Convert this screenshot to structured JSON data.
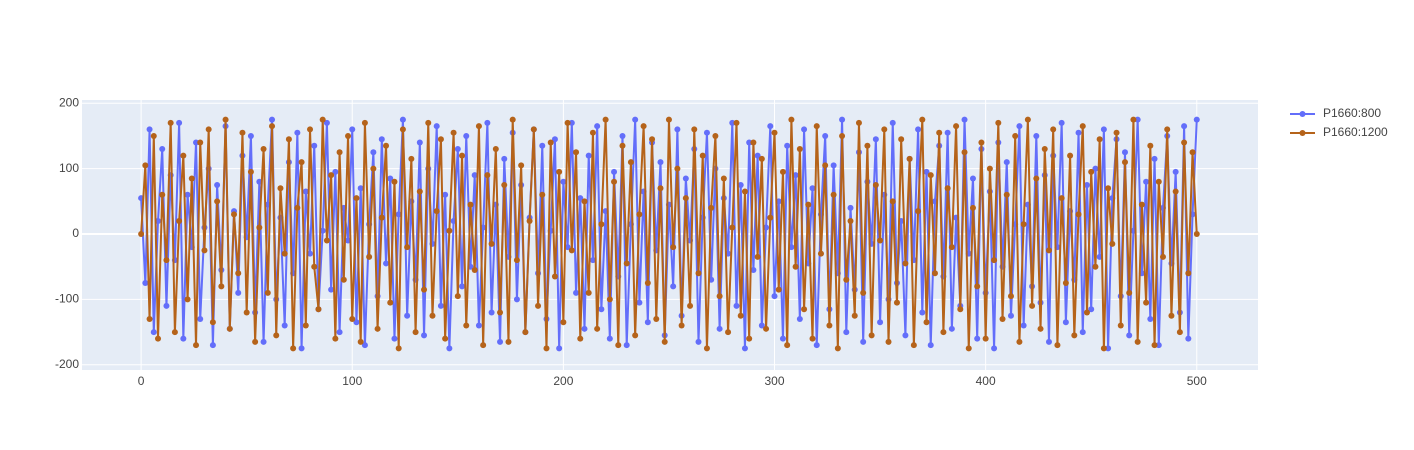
{
  "chart_data": {
    "type": "line",
    "x": [
      0,
      2,
      4,
      6,
      8,
      10,
      12,
      14,
      16,
      18,
      20,
      22,
      24,
      26,
      28,
      30,
      32,
      34,
      36,
      38,
      40,
      42,
      44,
      46,
      48,
      50,
      52,
      54,
      56,
      58,
      60,
      62,
      64,
      66,
      68,
      70,
      72,
      74,
      76,
      78,
      80,
      82,
      84,
      86,
      88,
      90,
      92,
      94,
      96,
      98,
      100,
      102,
      104,
      106,
      108,
      110,
      112,
      114,
      116,
      118,
      120,
      122,
      124,
      126,
      128,
      130,
      132,
      134,
      136,
      138,
      140,
      142,
      144,
      146,
      148,
      150,
      152,
      154,
      156,
      158,
      160,
      162,
      164,
      166,
      168,
      170,
      172,
      174,
      176,
      178,
      180,
      182,
      184,
      186,
      188,
      190,
      192,
      194,
      196,
      198,
      200,
      202,
      204,
      206,
      208,
      210,
      212,
      214,
      216,
      218,
      220,
      222,
      224,
      226,
      228,
      230,
      232,
      234,
      236,
      238,
      240,
      242,
      244,
      246,
      248,
      250,
      252,
      254,
      256,
      258,
      260,
      262,
      264,
      266,
      268,
      270,
      272,
      274,
      276,
      278,
      280,
      282,
      284,
      286,
      288,
      290,
      292,
      294,
      296,
      298,
      300,
      302,
      304,
      306,
      308,
      310,
      312,
      314,
      316,
      318,
      320,
      322,
      324,
      326,
      328,
      330,
      332,
      334,
      336,
      338,
      340,
      342,
      344,
      346,
      348,
      350,
      352,
      354,
      356,
      358,
      360,
      362,
      364,
      366,
      368,
      370,
      372,
      374,
      376,
      378,
      380,
      382,
      384,
      386,
      388,
      390,
      392,
      394,
      396,
      398,
      400,
      402,
      404,
      406,
      408,
      410,
      412,
      414,
      416,
      418,
      420,
      422,
      424,
      426,
      428,
      430,
      432,
      434,
      436,
      438,
      440,
      442,
      444,
      446,
      448,
      450,
      452,
      454,
      456,
      458,
      460,
      462,
      464,
      466,
      468,
      470,
      472,
      474,
      476,
      478,
      480,
      482,
      484,
      486,
      488,
      490,
      492,
      494,
      496,
      498,
      500
    ],
    "series": [
      {
        "name": "P1660:800",
        "color": "#636efa",
        "values": [
          55,
          -75,
          160,
          -150,
          20,
          130,
          -110,
          90,
          -40,
          170,
          -160,
          60,
          -20,
          140,
          -130,
          10,
          100,
          -170,
          75,
          -55,
          165,
          -145,
          35,
          -90,
          120,
          -5,
          150,
          -120,
          80,
          -165,
          45,
          175,
          -100,
          25,
          -140,
          110,
          -60,
          155,
          -175,
          65,
          -30,
          135,
          -115,
          5,
          170,
          -85,
          95,
          -150,
          40,
          -10,
          160,
          -135,
          70,
          -170,
          15,
          125,
          -95,
          145,
          -45,
          85,
          -160,
          30,
          175,
          -125,
          50,
          -70,
          140,
          -155,
          100,
          -15,
          165,
          -110,
          60,
          -175,
          20,
          130,
          -80,
          150,
          -50,
          90,
          -140,
          10,
          170,
          -120,
          45,
          -165,
          115,
          -35,
          155,
          -100,
          75,
          -150,
          25,
          160,
          -60,
          135,
          -130,
          5,
          145,
          -175,
          80,
          -20,
          170,
          -90,
          55,
          -145,
          120,
          -40,
          165,
          -115,
          35,
          -160,
          95,
          -65,
          150,
          -170,
          15,
          175,
          -105,
          65,
          -135,
          140,
          -25,
          110,
          -155,
          45,
          -80,
          160,
          -125,
          85,
          -10,
          130,
          -165,
          25,
          155,
          -70,
          100,
          -145,
          55,
          -30,
          170,
          -110,
          75,
          -175,
          140,
          -55,
          120,
          -140,
          10,
          165,
          -95,
          50,
          -160,
          135,
          -20,
          90,
          -130,
          160,
          -45,
          70,
          -170,
          30,
          150,
          -115,
          105,
          -60,
          175,
          -150,
          40,
          -85,
          125,
          -165,
          80,
          -15,
          145,
          -135,
          60,
          -100,
          170,
          -75,
          20,
          -155,
          115,
          -40,
          160,
          -120,
          95,
          -170,
          50,
          135,
          -65,
          155,
          -145,
          25,
          -110,
          175,
          -30,
          85,
          -160,
          130,
          -90,
          65,
          -175,
          140,
          -50,
          110,
          -125,
          15,
          165,
          -140,
          45,
          -80,
          150,
          -105,
          90,
          -165,
          120,
          -20,
          170,
          -135,
          35,
          -70,
          155,
          -150,
          75,
          -115,
          100,
          -35,
          160,
          -175,
          55,
          145,
          -95,
          125,
          -155,
          5,
          175,
          -60,
          80,
          -130,
          115,
          -170,
          40,
          150,
          -45,
          95,
          -120,
          165,
          -160,
          30,
          175
        ]
      },
      {
        "name": "P1660:1200",
        "color": "#b5631a",
        "values": [
          0,
          105,
          -130,
          150,
          -160,
          60,
          -40,
          170,
          -150,
          20,
          120,
          -100,
          85,
          -170,
          140,
          -25,
          160,
          -135,
          50,
          -80,
          175,
          -145,
          30,
          -60,
          155,
          -120,
          95,
          -165,
          10,
          130,
          -90,
          165,
          -155,
          70,
          -30,
          145,
          -175,
          40,
          110,
          -140,
          160,
          -50,
          -115,
          175,
          -10,
          90,
          -160,
          125,
          -70,
          150,
          -130,
          55,
          -165,
          170,
          -35,
          100,
          -145,
          25,
          135,
          -105,
          80,
          -175,
          160,
          -20,
          115,
          -150,
          65,
          -85,
          170,
          -125,
          35,
          145,
          -160,
          5,
          155,
          -95,
          120,
          -140,
          45,
          -55,
          165,
          -170,
          90,
          -15,
          130,
          -120,
          75,
          -165,
          175,
          -40,
          105,
          -150,
          20,
          160,
          -110,
          60,
          -175,
          140,
          -65,
          95,
          -135,
          170,
          -25,
          125,
          -160,
          50,
          -90,
          155,
          -145,
          15,
          175,
          -100,
          80,
          -170,
          135,
          -45,
          110,
          -155,
          30,
          165,
          -75,
          145,
          -130,
          70,
          -165,
          175,
          -20,
          100,
          -140,
          55,
          -110,
          160,
          -60,
          120,
          -175,
          40,
          150,
          -95,
          85,
          -150,
          10,
          170,
          -125,
          65,
          -160,
          140,
          -35,
          115,
          -145,
          25,
          155,
          -85,
          95,
          -170,
          175,
          -50,
          130,
          -115,
          45,
          -160,
          165,
          -30,
          105,
          -140,
          60,
          -175,
          150,
          -70,
          20,
          -125,
          170,
          -90,
          135,
          -155,
          75,
          -10,
          160,
          -165,
          50,
          -105,
          145,
          -45,
          115,
          -170,
          35,
          175,
          -135,
          90,
          -60,
          155,
          -150,
          70,
          -20,
          165,
          -115,
          125,
          -175,
          40,
          -80,
          140,
          -160,
          100,
          -40,
          170,
          -130,
          60,
          -95,
          150,
          -165,
          15,
          175,
          -110,
          85,
          -145,
          130,
          -25,
          160,
          -170,
          55,
          -75,
          120,
          -155,
          30,
          165,
          -120,
          95,
          -50,
          145,
          -175,
          70,
          -15,
          155,
          -140,
          110,
          -90,
          175,
          -165,
          45,
          -105,
          135,
          -170,
          80,
          -35,
          160,
          -125,
          65,
          -150,
          140,
          -60,
          125,
          0
        ]
      }
    ],
    "xlim": [
      -28,
      529
    ],
    "xticks": [
      0,
      100,
      200,
      300,
      400,
      500
    ],
    "ylim": [
      -208,
      205
    ],
    "yticks": [
      -200,
      -100,
      0,
      100,
      200
    ],
    "grid": true,
    "legend": "right"
  }
}
